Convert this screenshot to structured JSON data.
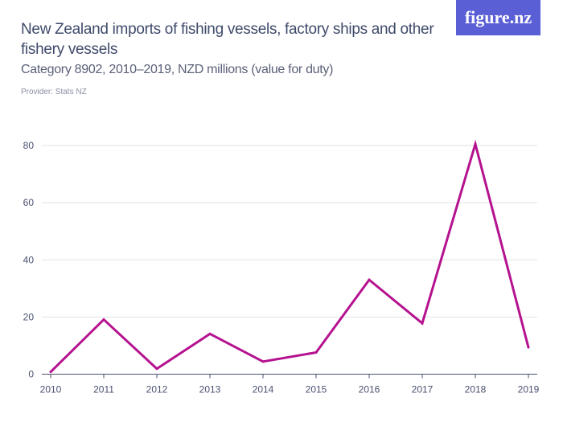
{
  "header": {
    "title": "New Zealand imports of fishing vessels, factory ships and other fishery vessels",
    "subtitle": "Category 8902, 2010–2019, NZD millions (value for duty)",
    "provider": "Provider: Stats NZ",
    "logo": "figure.nz"
  },
  "chart_data": {
    "type": "line",
    "title": "New Zealand imports of fishing vessels, factory ships and other fishery vessels",
    "subtitle": "Category 8902, 2010–2019, NZD millions (value for duty)",
    "x": [
      "2010",
      "2011",
      "2012",
      "2013",
      "2014",
      "2015",
      "2016",
      "2017",
      "2018",
      "2019"
    ],
    "series": [
      {
        "values": [
          0.8,
          19.1,
          1.9,
          14.1,
          4.4,
          7.6,
          33.0,
          17.8,
          80.5,
          9.4
        ],
        "color": "#b5128f"
      }
    ],
    "yticks": [
      0,
      20,
      40,
      60,
      80
    ],
    "ylim": [
      0,
      80
    ],
    "grid": true,
    "xlabel": "",
    "ylabel": ""
  },
  "colors": {
    "line": "#b5128f",
    "logo_bg": "#5a5fd6",
    "text": "#3f4a6b",
    "grid": "#e2e2e2"
  }
}
